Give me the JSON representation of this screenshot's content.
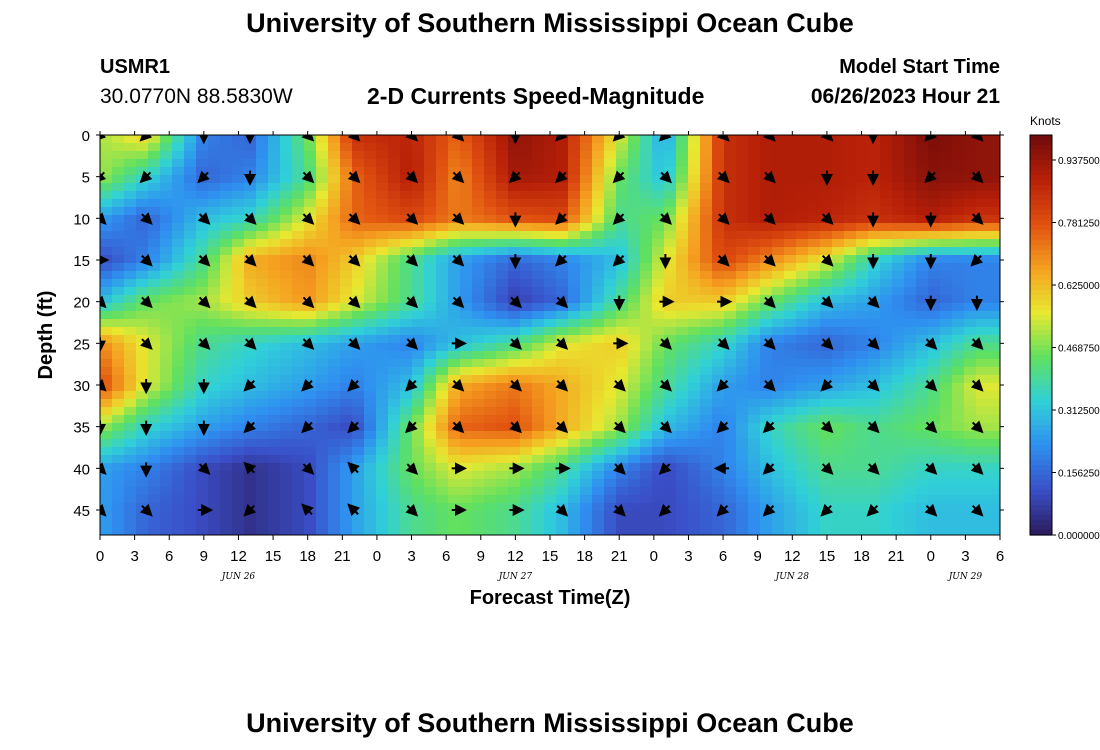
{
  "header": {
    "title": "University of Southern Mississippi Ocean Cube",
    "station": "USMR1",
    "coords": "30.0770N  88.5830W",
    "subtitle": "2-D Currents Speed-Magnitude",
    "model_start_label": "Model Start Time",
    "model_start_value": "06/26/2023 Hour 21"
  },
  "footer": {
    "title": "University of Southern Mississippi Ocean Cube"
  },
  "chart_data": {
    "type": "heatmap",
    "title": "2-D Currents Speed-Magnitude",
    "xlabel": "Forecast Time(Z)",
    "ylabel": "Depth (ft)",
    "x_tick_labels": [
      "0",
      "3",
      "6",
      "9",
      "12",
      "15",
      "18",
      "21",
      "0",
      "3",
      "6",
      "9",
      "12",
      "15",
      "18",
      "21",
      "0",
      "3",
      "6",
      "9",
      "12",
      "15",
      "18",
      "21",
      "0",
      "3",
      "6"
    ],
    "date_labels": [
      {
        "label": "JUN 26",
        "hour": 12
      },
      {
        "label": "JUN 27",
        "hour": 36
      },
      {
        "label": "JUN 28",
        "hour": 60
      },
      {
        "label": "JUN 29",
        "hour": 75
      }
    ],
    "x_range_hours": [
      0,
      78
    ],
    "y_ticks": [
      0,
      5,
      10,
      15,
      20,
      25,
      30,
      35,
      40,
      45
    ],
    "y_range": [
      0,
      48
    ],
    "colorbar": {
      "label": "Knots",
      "ticks": [
        "0.000000",
        "0.156250",
        "0.312500",
        "0.468750",
        "0.625000",
        "0.781250",
        "0.937500"
      ],
      "range": [
        0,
        1.0
      ]
    },
    "colors": {
      "c0": "#2b1a5a",
      "c1": "#3a4fc8",
      "c2": "#2f8ff0",
      "c3": "#30d0d8",
      "c4": "#60e060",
      "c5": "#e8e830",
      "c6": "#f5a020",
      "c7": "#e05010",
      "c8": "#b82008",
      "c9": "#6e0a0a"
    },
    "x_hours": [
      0,
      4,
      9,
      13,
      18,
      22,
      27,
      31,
      36,
      40,
      45,
      49,
      54,
      58,
      63,
      67,
      72,
      76
    ],
    "depths": [
      0,
      5,
      10,
      15,
      20,
      25,
      30,
      35,
      40,
      45
    ],
    "speed_grid": [
      [
        0.5,
        0.6,
        0.2,
        0.15,
        0.45,
        0.85,
        0.88,
        0.75,
        0.95,
        0.9,
        0.55,
        0.25,
        0.85,
        0.9,
        0.9,
        0.88,
        0.98,
        0.95
      ],
      [
        0.5,
        0.35,
        0.15,
        0.2,
        0.4,
        0.75,
        0.9,
        0.7,
        0.92,
        0.9,
        0.45,
        0.3,
        0.85,
        0.9,
        0.9,
        0.88,
        0.96,
        0.95
      ],
      [
        0.25,
        0.15,
        0.3,
        0.35,
        0.55,
        0.75,
        0.8,
        0.72,
        0.78,
        0.8,
        0.4,
        0.45,
        0.85,
        0.9,
        0.88,
        0.85,
        0.9,
        0.85
      ],
      [
        0.1,
        0.2,
        0.4,
        0.65,
        0.7,
        0.6,
        0.4,
        0.25,
        0.15,
        0.2,
        0.3,
        0.55,
        0.8,
        0.7,
        0.55,
        0.35,
        0.2,
        0.2
      ],
      [
        0.3,
        0.45,
        0.5,
        0.6,
        0.68,
        0.55,
        0.4,
        0.25,
        0.08,
        0.15,
        0.4,
        0.6,
        0.6,
        0.45,
        0.3,
        0.25,
        0.15,
        0.2
      ],
      [
        0.7,
        0.55,
        0.4,
        0.35,
        0.3,
        0.25,
        0.2,
        0.3,
        0.4,
        0.55,
        0.6,
        0.45,
        0.35,
        0.2,
        0.15,
        0.2,
        0.3,
        0.4
      ],
      [
        0.8,
        0.55,
        0.35,
        0.3,
        0.25,
        0.2,
        0.3,
        0.65,
        0.72,
        0.65,
        0.55,
        0.4,
        0.25,
        0.2,
        0.25,
        0.3,
        0.4,
        0.55
      ],
      [
        0.5,
        0.35,
        0.25,
        0.2,
        0.15,
        0.1,
        0.45,
        0.75,
        0.78,
        0.65,
        0.5,
        0.3,
        0.2,
        0.35,
        0.45,
        0.4,
        0.45,
        0.5
      ],
      [
        0.25,
        0.2,
        0.1,
        0.05,
        0.1,
        0.25,
        0.45,
        0.55,
        0.5,
        0.4,
        0.2,
        0.1,
        0.2,
        0.3,
        0.4,
        0.4,
        0.35,
        0.35
      ],
      [
        0.25,
        0.15,
        0.1,
        0.05,
        0.1,
        0.25,
        0.4,
        0.45,
        0.4,
        0.3,
        0.1,
        0.1,
        0.15,
        0.25,
        0.35,
        0.35,
        0.3,
        0.3
      ]
    ],
    "direction_grid_deg": [
      [
        135,
        135,
        90,
        90,
        45,
        45,
        45,
        45,
        90,
        135,
        135,
        135,
        45,
        45,
        45,
        90,
        135,
        45
      ],
      [
        135,
        135,
        135,
        90,
        45,
        45,
        45,
        45,
        135,
        135,
        135,
        45,
        45,
        45,
        90,
        90,
        135,
        45
      ],
      [
        45,
        45,
        45,
        45,
        45,
        45,
        45,
        45,
        90,
        135,
        135,
        45,
        45,
        45,
        45,
        90,
        90,
        45
      ],
      [
        0,
        45,
        45,
        45,
        45,
        45,
        45,
        45,
        90,
        135,
        135,
        90,
        45,
        45,
        45,
        90,
        90,
        135
      ],
      [
        45,
        45,
        45,
        45,
        45,
        45,
        45,
        45,
        45,
        45,
        90,
        0,
        0,
        45,
        45,
        45,
        90,
        90
      ],
      [
        90,
        45,
        45,
        45,
        45,
        45,
        45,
        0,
        45,
        45,
        0,
        45,
        45,
        45,
        45,
        45,
        45,
        45
      ],
      [
        45,
        90,
        90,
        135,
        135,
        135,
        135,
        45,
        45,
        45,
        45,
        45,
        135,
        45,
        135,
        45,
        45,
        45
      ],
      [
        90,
        90,
        90,
        135,
        135,
        135,
        135,
        45,
        45,
        45,
        45,
        45,
        135,
        135,
        45,
        45,
        45,
        45
      ],
      [
        45,
        90,
        45,
        225,
        45,
        225,
        45,
        0,
        0,
        0,
        45,
        135,
        180,
        135,
        45,
        45,
        45,
        45
      ],
      [
        45,
        45,
        0,
        135,
        225,
        225,
        45,
        0,
        0,
        45,
        45,
        135,
        135,
        135,
        135,
        135,
        45,
        45
      ]
    ]
  }
}
